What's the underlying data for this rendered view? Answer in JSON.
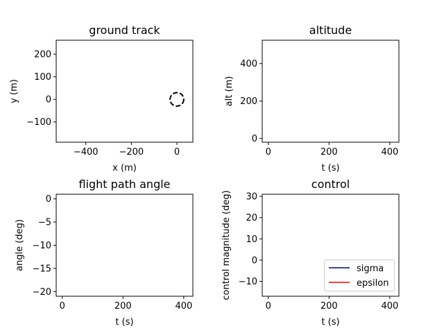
{
  "chart_data": [
    {
      "type": "line",
      "title": "ground track",
      "xlabel": "x (m)",
      "ylabel": "y (m)",
      "xlim": [
        -530,
        70
      ],
      "ylim": [
        -190,
        262
      ],
      "xticks": [
        -400,
        -200,
        0
      ],
      "yticks": [
        -100,
        0,
        100,
        200
      ],
      "xtick_labels": [
        "−400",
        "−200",
        "0"
      ],
      "ytick_labels": [
        "−100",
        "0",
        "100",
        "200"
      ],
      "series": [
        {
          "type": "circle",
          "style": "dashed",
          "color": "#000000",
          "center": [
            0,
            0
          ],
          "radius": 30
        }
      ]
    },
    {
      "type": "line",
      "title": "altitude",
      "xlabel": "t (s)",
      "ylabel": "alt (m)",
      "xlim": [
        -20,
        430
      ],
      "ylim": [
        -20,
        525
      ],
      "xticks": [
        0,
        200,
        400
      ],
      "yticks": [
        0,
        200,
        400
      ],
      "xtick_labels": [
        "0",
        "200",
        "400"
      ],
      "ytick_labels": [
        "0",
        "200",
        "400"
      ],
      "series": []
    },
    {
      "type": "line",
      "title": "flight path angle",
      "xlabel": "t (s)",
      "ylabel": "angle (deg)",
      "xlim": [
        -20,
        430
      ],
      "ylim": [
        -21,
        1
      ],
      "xticks": [
        0,
        200,
        400
      ],
      "yticks": [
        0,
        -5,
        -10,
        -15,
        -20
      ],
      "xtick_labels": [
        "0",
        "200",
        "400"
      ],
      "ytick_labels": [
        "0",
        "−5",
        "−10",
        "−15",
        "−20"
      ],
      "series": []
    },
    {
      "type": "line",
      "title": "control",
      "xlabel": "t (s)",
      "ylabel": "control magnitude (deg)",
      "xlim": [
        -20,
        430
      ],
      "ylim": [
        -17,
        31
      ],
      "xticks": [
        0,
        200,
        400
      ],
      "yticks": [
        -10,
        0,
        10,
        20,
        30
      ],
      "xtick_labels": [
        "0",
        "200",
        "400"
      ],
      "ytick_labels": [
        "−10",
        "0",
        "10",
        "20",
        "30"
      ],
      "legend": {
        "placement": "lower-right",
        "entries": [
          {
            "name": "sigma",
            "color": "#00008b"
          },
          {
            "name": "epsilon",
            "color": "#ff0000"
          }
        ]
      },
      "series": []
    }
  ]
}
